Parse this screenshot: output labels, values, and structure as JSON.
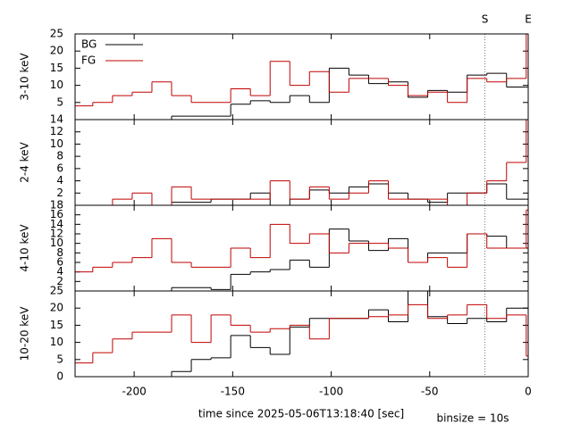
{
  "chart_data": [
    {
      "type": "histogram",
      "ylabel": "3-10 keV",
      "bins": [
        -231,
        -221,
        -211,
        -201,
        -191,
        -181,
        -171,
        -161,
        -151,
        -141,
        -131,
        -121,
        -111,
        -101,
        -91,
        -81,
        -71,
        -61,
        -51,
        -41,
        -31,
        -21,
        -11,
        -1,
        0
      ],
      "xlim": [
        -230,
        0
      ],
      "xticks": [
        -200,
        -150,
        -100,
        -50,
        0
      ],
      "ylim": [
        0,
        25
      ],
      "yticks": [
        5,
        10,
        15,
        20,
        25
      ],
      "markers": [
        {
          "label": "S",
          "x": -22
        },
        {
          "label": "E",
          "x": 0
        }
      ],
      "series": [
        {
          "name": "BG",
          "color": "#000000",
          "values": [
            0,
            0,
            0,
            0,
            0,
            1,
            1,
            1,
            4.5,
            5.5,
            5,
            7,
            5,
            15,
            13,
            10.5,
            11,
            6.5,
            8.5,
            8,
            13,
            13.5,
            9.5,
            9.5
          ]
        },
        {
          "name": "FG",
          "color": "#c00000",
          "values": [
            4,
            5,
            7,
            8,
            11,
            7,
            5,
            5,
            9,
            7,
            17,
            10,
            14,
            8,
            12,
            12,
            10,
            7,
            8,
            5,
            12,
            11,
            12,
            25
          ]
        }
      ]
    },
    {
      "type": "histogram",
      "ylabel": "2-4 keV",
      "bins": [
        -231,
        -221,
        -211,
        -201,
        -191,
        -181,
        -171,
        -161,
        -151,
        -141,
        -131,
        -121,
        -111,
        -101,
        -91,
        -81,
        -71,
        -61,
        -51,
        -41,
        -31,
        -21,
        -11,
        -1,
        0
      ],
      "xlim": [
        -230,
        0
      ],
      "xticks": [
        -200,
        -150,
        -100,
        -50,
        0
      ],
      "ylim": [
        0,
        14
      ],
      "yticks": [
        2,
        4,
        6,
        8,
        10,
        12,
        14
      ],
      "series": [
        {
          "color": "#000000",
          "values": [
            0,
            0,
            0,
            0,
            0,
            0.5,
            0.5,
            1,
            1,
            2,
            0,
            1,
            2.5,
            2,
            3,
            3.5,
            2,
            1,
            0.5,
            2,
            2,
            3.5,
            1,
            1
          ]
        },
        {
          "color": "#c00000",
          "values": [
            0,
            0,
            1,
            2,
            0,
            3,
            1,
            1,
            1,
            1,
            4,
            1,
            3,
            1,
            2,
            4,
            1,
            1,
            1,
            0,
            2,
            4,
            7,
            14
          ]
        }
      ]
    },
    {
      "type": "histogram",
      "ylabel": "4-10 keV",
      "bins": [
        -231,
        -221,
        -211,
        -201,
        -191,
        -181,
        -171,
        -161,
        -151,
        -141,
        -131,
        -121,
        -111,
        -101,
        -91,
        -81,
        -71,
        -61,
        -51,
        -41,
        -31,
        -21,
        -11,
        -1,
        0
      ],
      "xlim": [
        -230,
        0
      ],
      "xticks": [
        -200,
        -150,
        -100,
        -50,
        0
      ],
      "ylim": [
        0,
        18
      ],
      "yticks": [
        2,
        4,
        6,
        8,
        10,
        12,
        14,
        16,
        18
      ],
      "series": [
        {
          "color": "#000000",
          "values": [
            0,
            0,
            0,
            0,
            0,
            0.7,
            0.7,
            0.3,
            3.5,
            4,
            4.5,
            6.5,
            5,
            13,
            10.5,
            8.5,
            11,
            6,
            8,
            8,
            12,
            11.5,
            9,
            9
          ]
        },
        {
          "color": "#c00000",
          "values": [
            4,
            5,
            6,
            7,
            11,
            6,
            5,
            5,
            9,
            7,
            14,
            10,
            12,
            8,
            10,
            10,
            9,
            6,
            7,
            5,
            12,
            9,
            9,
            17
          ]
        }
      ]
    },
    {
      "type": "histogram",
      "ylabel": "10-20 keV",
      "bins": [
        -231,
        -221,
        -211,
        -201,
        -191,
        -181,
        -171,
        -161,
        -151,
        -141,
        -131,
        -121,
        -111,
        -101,
        -91,
        -81,
        -71,
        -61,
        -51,
        -41,
        -31,
        -21,
        -11,
        -1,
        0
      ],
      "xlabel": "time since 2025-05-06T13:18:40 [sec]",
      "annotation": "binsize = 10s",
      "xlim": [
        -230,
        0
      ],
      "xticks": [
        -200,
        -150,
        -100,
        -50,
        0
      ],
      "ylim": [
        0,
        25
      ],
      "yticks": [
        0,
        5,
        10,
        15,
        20,
        25
      ],
      "series": [
        {
          "color": "#000000",
          "values": [
            0,
            0,
            0,
            0,
            0,
            1.5,
            5,
            5.5,
            12,
            8.5,
            6.5,
            14.5,
            17,
            17,
            17,
            19.5,
            16,
            25,
            17.5,
            15.5,
            17,
            16,
            20,
            20
          ]
        },
        {
          "color": "#c00000",
          "values": [
            4,
            7,
            11,
            13,
            13,
            18,
            10,
            18,
            15,
            13,
            14,
            15,
            11,
            17,
            17,
            17.5,
            18,
            21,
            17,
            18,
            21,
            17,
            18,
            6
          ]
        }
      ]
    }
  ]
}
